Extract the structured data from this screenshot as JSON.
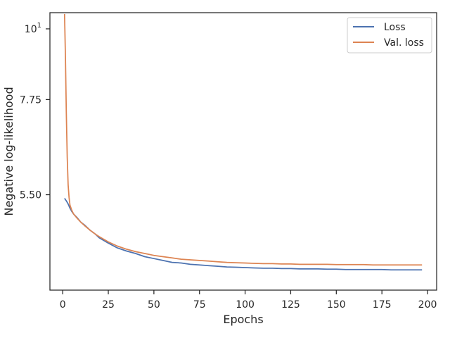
{
  "chart_data": {
    "type": "line",
    "title": "",
    "xlabel": "Epochs",
    "ylabel": "Negative log-likelihood",
    "xlim": [
      -7,
      205
    ],
    "ylim": [
      3.9,
      10.6
    ],
    "y_scale": "log",
    "xticks": [
      0,
      25,
      50,
      75,
      100,
      125,
      150,
      175,
      200
    ],
    "yticks": [
      {
        "value": 5.5,
        "label": "5.50"
      },
      {
        "value": 7.75,
        "label": "7.75"
      },
      {
        "value": 10,
        "label": "10",
        "superscript": "1"
      }
    ],
    "grid": false,
    "legend_position": "top-right",
    "series": [
      {
        "name": "Loss",
        "color": "#4c72b0",
        "x": [
          1,
          2,
          3,
          4,
          5,
          6,
          8,
          10,
          12,
          15,
          18,
          20,
          25,
          30,
          35,
          40,
          45,
          50,
          55,
          60,
          65,
          70,
          75,
          80,
          85,
          90,
          95,
          100,
          105,
          110,
          115,
          120,
          125,
          130,
          135,
          140,
          145,
          150,
          155,
          160,
          165,
          170,
          175,
          180,
          185,
          190,
          197
        ],
        "y": [
          5.43,
          5.38,
          5.32,
          5.24,
          5.18,
          5.13,
          5.06,
          4.98,
          4.93,
          4.84,
          4.77,
          4.71,
          4.62,
          4.54,
          4.49,
          4.45,
          4.4,
          4.37,
          4.34,
          4.31,
          4.3,
          4.28,
          4.27,
          4.26,
          4.25,
          4.24,
          4.235,
          4.23,
          4.225,
          4.22,
          4.22,
          4.215,
          4.215,
          4.21,
          4.21,
          4.21,
          4.205,
          4.205,
          4.2,
          4.2,
          4.2,
          4.2,
          4.2,
          4.195,
          4.195,
          4.195,
          4.195
        ]
      },
      {
        "name": "Val. loss",
        "color": "#dd8452",
        "x": [
          1,
          1.5,
          2,
          2.5,
          3,
          3.5,
          4,
          5,
          6,
          8,
          10,
          12,
          15,
          18,
          20,
          25,
          30,
          35,
          40,
          45,
          50,
          55,
          60,
          65,
          70,
          75,
          80,
          85,
          90,
          95,
          100,
          105,
          110,
          115,
          120,
          125,
          130,
          135,
          140,
          145,
          150,
          155,
          160,
          165,
          170,
          175,
          180,
          185,
          190,
          197
        ],
        "y": [
          10.55,
          9.0,
          7.4,
          6.3,
          5.7,
          5.45,
          5.3,
          5.2,
          5.13,
          5.05,
          4.98,
          4.92,
          4.84,
          4.77,
          4.73,
          4.64,
          4.57,
          4.52,
          4.48,
          4.45,
          4.42,
          4.4,
          4.38,
          4.36,
          4.35,
          4.34,
          4.33,
          4.32,
          4.31,
          4.305,
          4.3,
          4.295,
          4.29,
          4.29,
          4.285,
          4.285,
          4.28,
          4.28,
          4.28,
          4.28,
          4.275,
          4.275,
          4.275,
          4.275,
          4.27,
          4.27,
          4.27,
          4.27,
          4.27,
          4.27
        ]
      }
    ]
  }
}
